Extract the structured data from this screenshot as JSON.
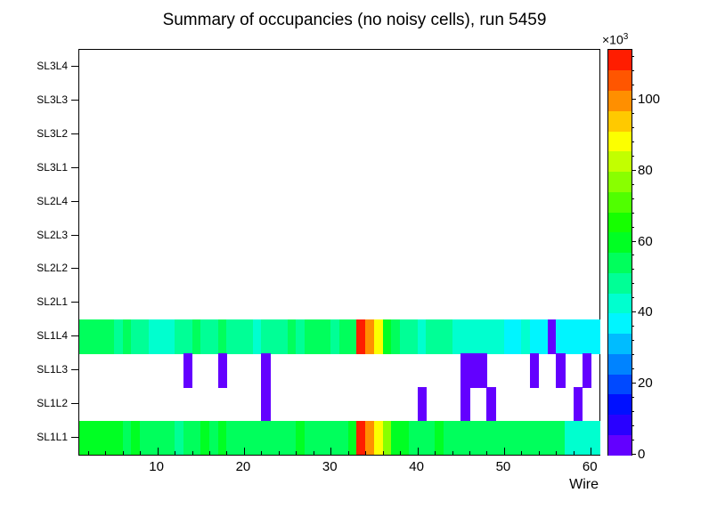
{
  "title": "Summary of occupancies (no noisy cells), run 5459",
  "x_axis": {
    "label": "Wire",
    "major_ticks": [
      10,
      20,
      30,
      40,
      50,
      60
    ],
    "minor_tick_step": 2,
    "range": [
      1,
      61
    ]
  },
  "y_axis": {
    "labels_top_to_bottom": [
      "SL3L4",
      "SL3L3",
      "SL3L2",
      "SL3L1",
      "SL2L4",
      "SL2L3",
      "SL2L2",
      "SL2L1",
      "SL1L4",
      "SL1L3",
      "SL1L2",
      "SL1L1"
    ]
  },
  "z_axis": {
    "ticks": [
      0,
      20,
      40,
      60,
      80,
      100
    ],
    "minor_tick_step": 4,
    "scale_base": "×10",
    "scale_exp": "3",
    "max": 114,
    "levels": 20,
    "palette": "rainbow-violet-to-red",
    "min_color": "#7f00ff",
    "max_color": "#ff0000"
  },
  "chart_data": {
    "type": "heatmap",
    "title": "Summary of occupancies (no noisy cells), run 5459",
    "xlabel": "Wire",
    "x_range": [
      1,
      61
    ],
    "n_wires": 60,
    "value_scale": 1000,
    "zmax": 114,
    "rows_top_to_bottom": [
      "SL3L4",
      "SL3L3",
      "SL3L2",
      "SL3L1",
      "SL2L4",
      "SL2L3",
      "SL2L2",
      "SL2L1",
      "SL1L4",
      "SL1L3",
      "SL1L2",
      "SL1L1"
    ],
    "values_by_row": {
      "SL3L4": [],
      "SL3L3": [],
      "SL3L2": [],
      "SL3L1": [],
      "SL2L4": [],
      "SL2L3": [],
      "SL2L2": [],
      "SL2L1": [],
      "SL1L4": [
        55,
        55,
        52,
        54,
        50,
        52,
        48,
        46,
        44,
        42,
        44,
        48,
        50,
        52,
        50,
        48,
        52,
        50,
        48,
        46,
        44,
        46,
        48,
        50,
        52,
        50,
        52,
        54,
        52,
        50,
        52,
        55,
        113,
        100,
        88,
        62,
        55,
        50,
        46,
        44,
        46,
        48,
        46,
        44,
        42,
        44,
        42,
        40,
        40,
        38,
        38,
        40,
        38,
        38,
        5,
        38,
        36,
        38,
        36,
        38
      ],
      "SL1L3": [
        0,
        0,
        0,
        0,
        0,
        0,
        0,
        0,
        0,
        0,
        0,
        0,
        5,
        0,
        0,
        0,
        5,
        0,
        0,
        0,
        0,
        5,
        0,
        0,
        0,
        0,
        0,
        0,
        0,
        0,
        0,
        0,
        0,
        0,
        0,
        0,
        0,
        0,
        0,
        0,
        0,
        0,
        0,
        0,
        5,
        5,
        5,
        0,
        0,
        0,
        0,
        0,
        5,
        0,
        0,
        5,
        0,
        0,
        5,
        0
      ],
      "SL1L2": [
        0,
        0,
        0,
        0,
        0,
        0,
        0,
        0,
        0,
        0,
        0,
        0,
        0,
        0,
        0,
        0,
        0,
        0,
        0,
        0,
        0,
        5,
        0,
        0,
        0,
        0,
        0,
        0,
        0,
        0,
        0,
        0,
        0,
        0,
        0,
        0,
        0,
        0,
        0,
        5,
        0,
        0,
        0,
        0,
        5,
        0,
        0,
        5,
        0,
        0,
        0,
        0,
        0,
        0,
        0,
        0,
        0,
        5,
        0,
        0
      ],
      "SL1L1": [
        62,
        60,
        58,
        60,
        58,
        56,
        58,
        56,
        55,
        56,
        52,
        50,
        52,
        55,
        58,
        56,
        58,
        56,
        55,
        54,
        52,
        54,
        56,
        55,
        56,
        58,
        56,
        55,
        56,
        55,
        56,
        58,
        110,
        97,
        87,
        78,
        60,
        58,
        56,
        55,
        56,
        58,
        56,
        55,
        54,
        55,
        56,
        55,
        54,
        55,
        56,
        55,
        54,
        55,
        54,
        52,
        44,
        42,
        43,
        42
      ]
    }
  }
}
